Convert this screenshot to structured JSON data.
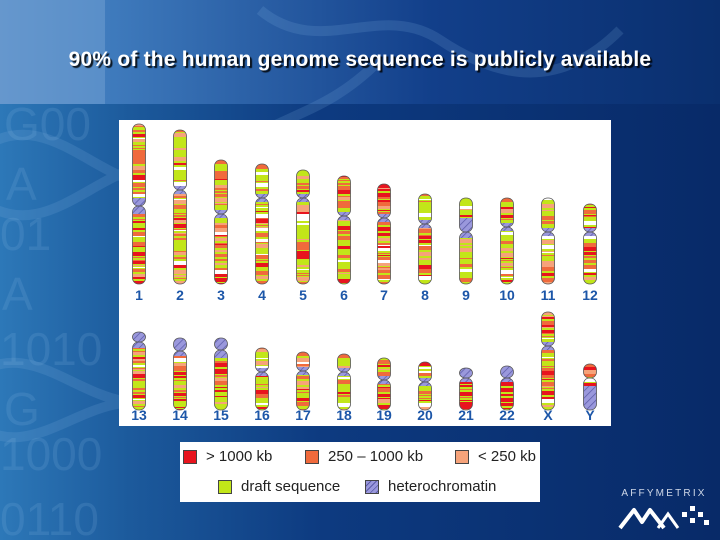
{
  "slide": {
    "title": "90% of the human genome sequence is publicly available"
  },
  "colors": {
    "gt_1000kb": "#e8141e",
    "range_250_1000kb": "#f06a3c",
    "lt_250kb": "#f6a37a",
    "draft": "#c2e619",
    "heterochromatin": "#9a98dc",
    "label": "#1c56a8"
  },
  "ideogram": {
    "chromosomes": [
      {
        "label": "1"
      },
      {
        "label": "2"
      },
      {
        "label": "3"
      },
      {
        "label": "4"
      },
      {
        "label": "5"
      },
      {
        "label": "6"
      },
      {
        "label": "7"
      },
      {
        "label": "8"
      },
      {
        "label": "9"
      },
      {
        "label": "10"
      },
      {
        "label": "11"
      },
      {
        "label": "12"
      },
      {
        "label": "13"
      },
      {
        "label": "14"
      },
      {
        "label": "15"
      },
      {
        "label": "16"
      },
      {
        "label": "17"
      },
      {
        "label": "18"
      },
      {
        "label": "19"
      },
      {
        "label": "20"
      },
      {
        "label": "21"
      },
      {
        "label": "22"
      },
      {
        "label": "X"
      },
      {
        "label": "Y"
      }
    ]
  },
  "legend": {
    "gt_1000kb": "> 1000 kb",
    "range_250_1000kb": "250 – 1000 kb",
    "lt_250kb": "< 250 kb",
    "draft": "draft sequence",
    "heterochromatin": "heterochromatin"
  },
  "logo": {
    "company": "AFFYMETRIX"
  }
}
